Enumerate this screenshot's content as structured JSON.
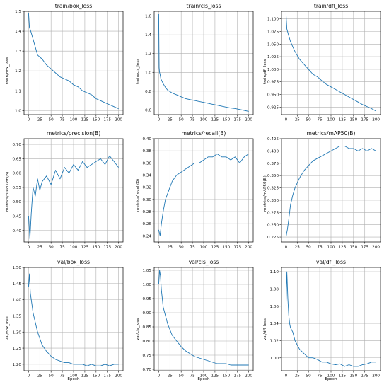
{
  "chart_data": [
    {
      "type": "line",
      "title": "train/box_loss",
      "xlabel": "",
      "ylabel": "train/box_loss",
      "xlim": [
        -10,
        210
      ],
      "ylim": [
        0.98,
        1.5
      ],
      "xticks": [
        0,
        25,
        50,
        75,
        100,
        125,
        150,
        175,
        200
      ],
      "yticks": [
        1.0,
        1.1,
        1.2,
        1.3,
        1.4,
        1.5
      ],
      "tick_labels_y": [
        "1.0",
        "1.1",
        "1.2",
        "1.3",
        "1.4",
        "1.5"
      ],
      "grid": true,
      "series": [
        {
          "x": [
            0,
            2,
            5,
            10,
            15,
            20,
            30,
            40,
            50,
            60,
            70,
            80,
            90,
            100,
            110,
            120,
            130,
            140,
            150,
            160,
            170,
            180,
            190,
            200
          ],
          "y": [
            1.49,
            1.42,
            1.4,
            1.36,
            1.32,
            1.28,
            1.26,
            1.23,
            1.21,
            1.19,
            1.17,
            1.16,
            1.15,
            1.13,
            1.12,
            1.1,
            1.09,
            1.08,
            1.06,
            1.05,
            1.04,
            1.03,
            1.02,
            1.01
          ]
        }
      ]
    },
    {
      "type": "line",
      "title": "train/cls_loss",
      "xlabel": "",
      "ylabel": "train/cls_loss",
      "xlim": [
        -10,
        210
      ],
      "ylim": [
        0.55,
        1.65
      ],
      "xticks": [
        0,
        25,
        50,
        75,
        100,
        125,
        150,
        175,
        200
      ],
      "yticks": [
        0.6,
        0.8,
        1.0,
        1.2,
        1.4,
        1.6
      ],
      "tick_labels_y": [
        "0.6",
        "0.8",
        "1.0",
        "1.2",
        "1.4",
        "1.6"
      ],
      "grid": true,
      "series": [
        {
          "x": [
            0,
            1,
            2,
            3,
            5,
            10,
            15,
            20,
            30,
            40,
            50,
            60,
            70,
            80,
            90,
            100,
            110,
            120,
            130,
            140,
            150,
            160,
            170,
            180,
            190,
            200
          ],
          "y": [
            1.62,
            1.05,
            1.0,
            0.98,
            0.93,
            0.88,
            0.84,
            0.81,
            0.78,
            0.76,
            0.74,
            0.72,
            0.71,
            0.7,
            0.69,
            0.68,
            0.67,
            0.66,
            0.65,
            0.64,
            0.63,
            0.62,
            0.615,
            0.605,
            0.595,
            0.585
          ]
        }
      ]
    },
    {
      "type": "line",
      "title": "train/dfl_loss",
      "xlabel": "",
      "ylabel": "train/dfl_loss",
      "xlim": [
        -10,
        210
      ],
      "ylim": [
        0.91,
        1.115
      ],
      "xticks": [
        0,
        25,
        50,
        75,
        100,
        125,
        150,
        175,
        200
      ],
      "yticks": [
        0.925,
        0.95,
        0.975,
        1.0,
        1.025,
        1.05,
        1.075,
        1.1
      ],
      "tick_labels_y": [
        "0.925",
        "0.950",
        "0.975",
        "1.000",
        "1.025",
        "1.050",
        "1.075",
        "1.100"
      ],
      "grid": true,
      "series": [
        {
          "x": [
            0,
            2,
            5,
            10,
            15,
            20,
            30,
            40,
            50,
            60,
            70,
            80,
            90,
            100,
            110,
            120,
            130,
            140,
            150,
            160,
            170,
            180,
            190,
            200
          ],
          "y": [
            1.11,
            1.08,
            1.07,
            1.055,
            1.045,
            1.035,
            1.02,
            1.01,
            1.0,
            0.99,
            0.985,
            0.977,
            0.97,
            0.965,
            0.96,
            0.955,
            0.95,
            0.945,
            0.94,
            0.935,
            0.93,
            0.926,
            0.922,
            0.917
          ]
        }
      ]
    },
    {
      "type": "line",
      "title": "metrics/precision(B)",
      "xlabel": "",
      "ylabel": "metrics/precision(B)",
      "xlim": [
        -10,
        210
      ],
      "ylim": [
        0.36,
        0.72
      ],
      "xticks": [
        0,
        25,
        50,
        75,
        100,
        125,
        150,
        175,
        200
      ],
      "yticks": [
        0.4,
        0.45,
        0.5,
        0.55,
        0.6,
        0.65,
        0.7
      ],
      "tick_labels_y": [
        "0.40",
        "0.45",
        "0.50",
        "0.55",
        "0.60",
        "0.65",
        "0.70"
      ],
      "grid": true,
      "series": [
        {
          "x": [
            0,
            3,
            6,
            10,
            15,
            20,
            25,
            30,
            40,
            50,
            60,
            70,
            80,
            90,
            100,
            110,
            120,
            130,
            140,
            150,
            160,
            170,
            180,
            190,
            200
          ],
          "y": [
            0.45,
            0.37,
            0.46,
            0.55,
            0.52,
            0.58,
            0.54,
            0.57,
            0.59,
            0.56,
            0.61,
            0.58,
            0.62,
            0.6,
            0.63,
            0.61,
            0.64,
            0.62,
            0.63,
            0.64,
            0.65,
            0.63,
            0.66,
            0.64,
            0.62
          ]
        }
      ]
    },
    {
      "type": "line",
      "title": "metrics/recall(B)",
      "xlabel": "",
      "ylabel": "metrics/recall(B)",
      "xlim": [
        -10,
        210
      ],
      "ylim": [
        0.23,
        0.4
      ],
      "xticks": [
        0,
        25,
        50,
        75,
        100,
        125,
        150,
        175,
        200
      ],
      "yticks": [
        0.24,
        0.26,
        0.28,
        0.3,
        0.32,
        0.34,
        0.36,
        0.38,
        0.4
      ],
      "tick_labels_y": [
        "0.24",
        "0.26",
        "0.28",
        "0.30",
        "0.32",
        "0.34",
        "0.36",
        "0.38",
        "0.40"
      ],
      "grid": true,
      "series": [
        {
          "x": [
            0,
            3,
            6,
            10,
            15,
            20,
            25,
            30,
            40,
            50,
            60,
            70,
            80,
            90,
            100,
            110,
            120,
            130,
            140,
            150,
            160,
            170,
            180,
            190,
            200
          ],
          "y": [
            0.25,
            0.24,
            0.26,
            0.28,
            0.3,
            0.31,
            0.32,
            0.33,
            0.34,
            0.345,
            0.35,
            0.355,
            0.36,
            0.36,
            0.365,
            0.37,
            0.37,
            0.375,
            0.37,
            0.37,
            0.365,
            0.37,
            0.36,
            0.37,
            0.375
          ]
        }
      ]
    },
    {
      "type": "line",
      "title": "metrics/mAP50(B)",
      "xlabel": "",
      "ylabel": "metrics/mAP50(B)",
      "xlim": [
        -10,
        210
      ],
      "ylim": [
        0.215,
        0.425
      ],
      "xticks": [
        0,
        25,
        50,
        75,
        100,
        125,
        150,
        175,
        200
      ],
      "yticks": [
        0.225,
        0.25,
        0.275,
        0.3,
        0.325,
        0.35,
        0.375,
        0.4,
        0.425
      ],
      "tick_labels_y": [
        "0.225",
        "0.250",
        "0.275",
        "0.300",
        "0.325",
        "0.350",
        "0.375",
        "0.400",
        "0.425"
      ],
      "grid": true,
      "series": [
        {
          "x": [
            0,
            3,
            6,
            10,
            15,
            20,
            25,
            30,
            40,
            50,
            60,
            70,
            80,
            90,
            100,
            110,
            120,
            130,
            140,
            150,
            160,
            170,
            180,
            190,
            200
          ],
          "y": [
            0.225,
            0.24,
            0.26,
            0.29,
            0.31,
            0.325,
            0.335,
            0.345,
            0.36,
            0.37,
            0.38,
            0.385,
            0.39,
            0.395,
            0.4,
            0.405,
            0.41,
            0.41,
            0.405,
            0.405,
            0.4,
            0.405,
            0.4,
            0.405,
            0.4
          ]
        }
      ]
    },
    {
      "type": "line",
      "title": "val/box_loss",
      "xlabel": "Epoch",
      "ylabel": "val/box_loss",
      "xlim": [
        -10,
        210
      ],
      "ylim": [
        1.18,
        1.5
      ],
      "xticks": [
        0,
        25,
        50,
        75,
        100,
        125,
        150,
        175,
        200
      ],
      "yticks": [
        1.2,
        1.25,
        1.3,
        1.35,
        1.4,
        1.45,
        1.5
      ],
      "tick_labels_y": [
        "1.20",
        "1.25",
        "1.30",
        "1.35",
        "1.40",
        "1.45",
        "1.50"
      ],
      "grid": true,
      "series": [
        {
          "x": [
            0,
            2,
            4,
            6,
            8,
            10,
            15,
            20,
            25,
            30,
            40,
            50,
            60,
            70,
            80,
            90,
            100,
            110,
            120,
            130,
            140,
            150,
            160,
            170,
            180,
            190,
            200
          ],
          "y": [
            1.44,
            1.48,
            1.42,
            1.4,
            1.38,
            1.36,
            1.33,
            1.3,
            1.28,
            1.26,
            1.24,
            1.225,
            1.215,
            1.21,
            1.205,
            1.205,
            1.2,
            1.2,
            1.2,
            1.195,
            1.2,
            1.195,
            1.195,
            1.2,
            1.195,
            1.2,
            1.2
          ]
        }
      ]
    },
    {
      "type": "line",
      "title": "val/cls_loss",
      "xlabel": "Epoch",
      "ylabel": "val/cls_loss",
      "xlim": [
        -10,
        210
      ],
      "ylim": [
        0.695,
        1.06
      ],
      "xticks": [
        0,
        25,
        50,
        75,
        100,
        125,
        150,
        175,
        200
      ],
      "yticks": [
        0.7,
        0.75,
        0.8,
        0.85,
        0.9,
        0.95,
        1.0,
        1.05
      ],
      "tick_labels_y": [
        "0.70",
        "0.75",
        "0.80",
        "0.85",
        "0.90",
        "0.95",
        "1.00",
        "1.05"
      ],
      "grid": true,
      "series": [
        {
          "x": [
            0,
            2,
            4,
            6,
            8,
            10,
            15,
            20,
            25,
            30,
            40,
            50,
            60,
            70,
            80,
            90,
            100,
            110,
            120,
            130,
            140,
            150,
            160,
            170,
            180,
            190,
            200
          ],
          "y": [
            1.0,
            1.05,
            1.03,
            0.98,
            0.95,
            0.92,
            0.89,
            0.86,
            0.84,
            0.82,
            0.8,
            0.78,
            0.765,
            0.755,
            0.745,
            0.74,
            0.735,
            0.73,
            0.725,
            0.72,
            0.72,
            0.72,
            0.715,
            0.715,
            0.715,
            0.715,
            0.715
          ]
        }
      ]
    },
    {
      "type": "line",
      "title": "val/dfl_loss",
      "xlabel": "Epoch",
      "ylabel": "val/dfl_loss",
      "xlim": [
        -10,
        210
      ],
      "ylim": [
        0.985,
        1.105
      ],
      "xticks": [
        0,
        25,
        50,
        75,
        100,
        125,
        150,
        175,
        200
      ],
      "yticks": [
        1.0,
        1.02,
        1.04,
        1.06,
        1.08,
        1.1
      ],
      "tick_labels_y": [
        "1.00",
        "1.02",
        "1.04",
        "1.06",
        "1.08",
        "1.10"
      ],
      "grid": true,
      "series": [
        {
          "x": [
            0,
            2,
            4,
            6,
            8,
            10,
            15,
            20,
            25,
            30,
            40,
            50,
            60,
            70,
            80,
            90,
            100,
            110,
            120,
            130,
            140,
            150,
            160,
            170,
            180,
            190,
            200
          ],
          "y": [
            1.06,
            1.1,
            1.07,
            1.05,
            1.04,
            1.035,
            1.03,
            1.02,
            1.015,
            1.01,
            1.005,
            1.0,
            1.0,
            0.998,
            0.995,
            0.995,
            0.993,
            0.992,
            0.993,
            0.99,
            0.992,
            0.99,
            0.99,
            0.992,
            0.993,
            0.995,
            0.995
          ]
        }
      ]
    }
  ],
  "colors": {
    "line": "#1f77b4",
    "grid": "#b0b0b0",
    "frame": "#000000"
  }
}
